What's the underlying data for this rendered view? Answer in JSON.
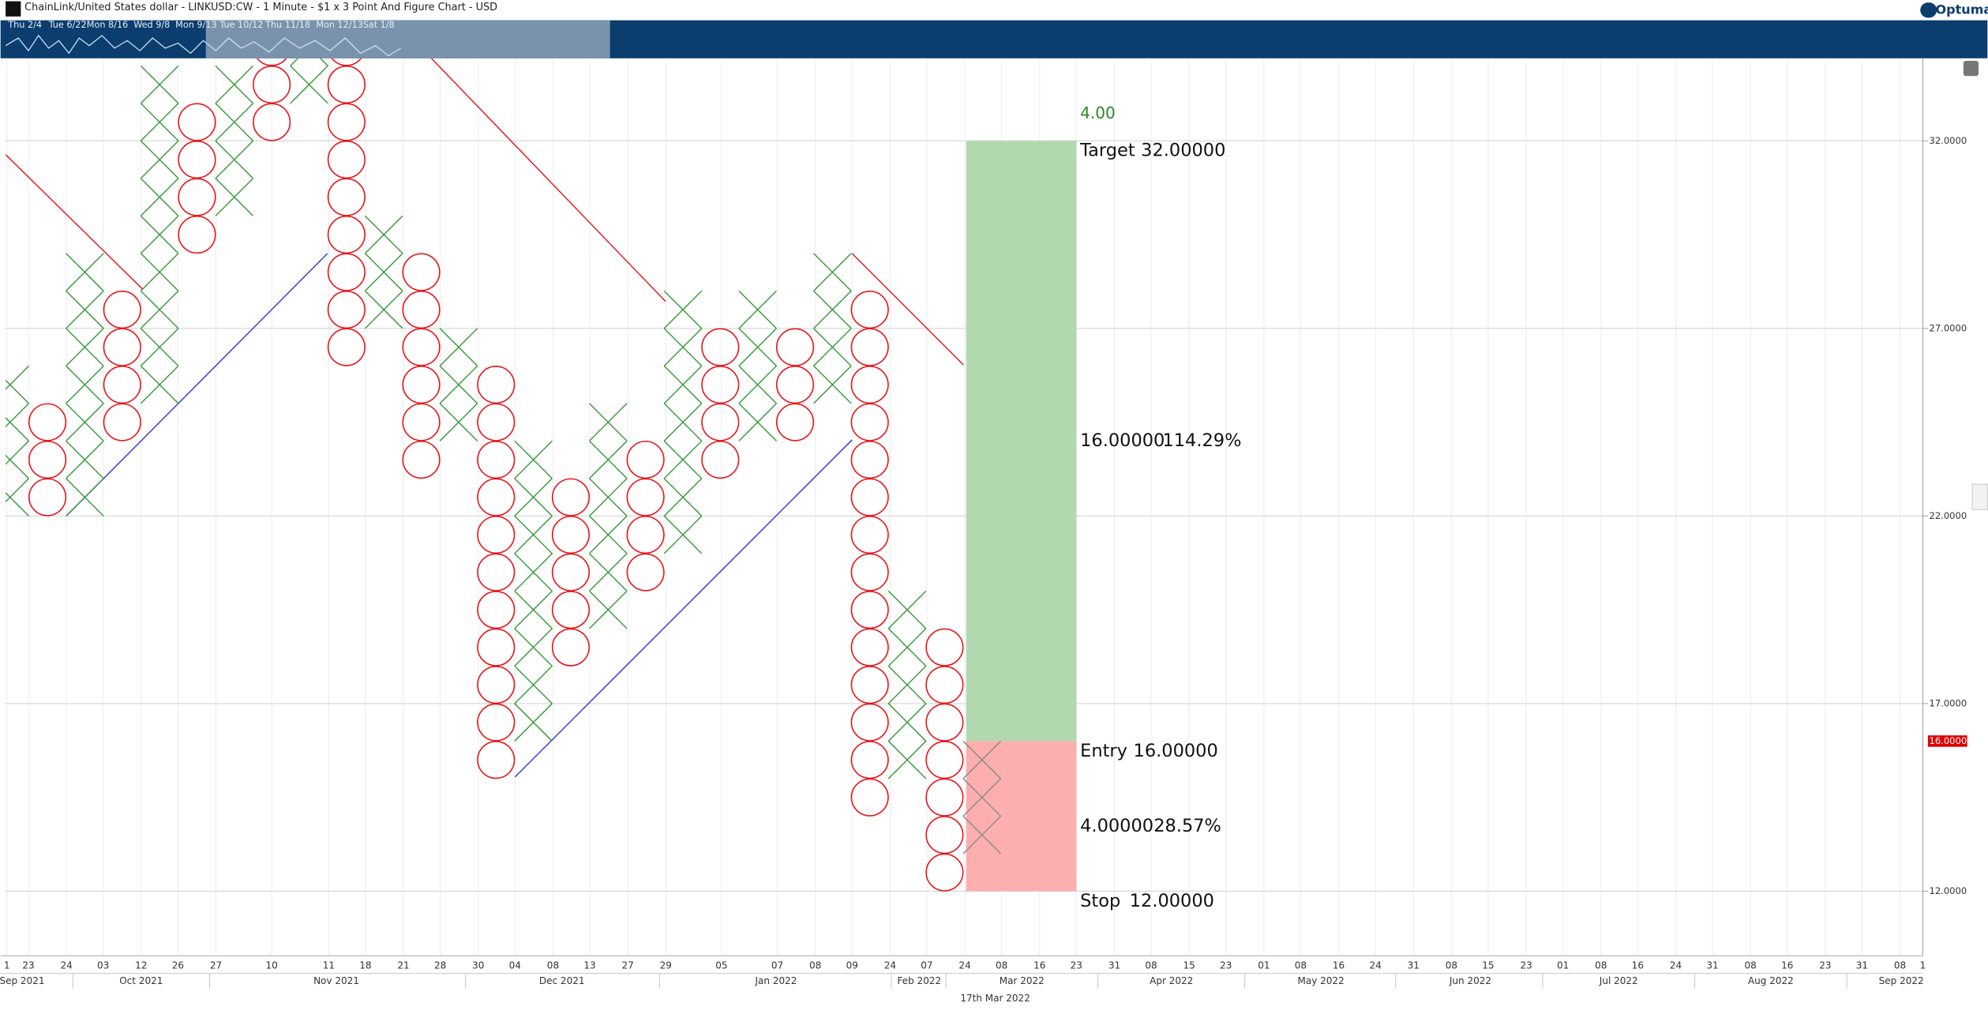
{
  "header": {
    "title": "ChainLink/United States dollar - LINKUSD:CW - 1 Minute - $1 x 3 Point And Figure Chart - USD",
    "logo": "Optuma"
  },
  "navigator": {
    "labels": [
      "Thu 2/4",
      "Tue 6/22",
      "Mon 8/16",
      "Wed 9/8",
      "Mon 9/13",
      "Tue 10/12",
      "Thu 11/18",
      "Mon 12/13",
      "Sat 1/8"
    ]
  },
  "chart_data": {
    "type": "point-and-figure",
    "box_size": 1,
    "ylim": [
      10.28,
      34.2
    ],
    "yticks": [
      {
        "value": 12,
        "label": "12.0000"
      },
      {
        "value": 17,
        "label": "17.0000"
      },
      {
        "value": 22,
        "label": "22.0000"
      },
      {
        "value": 27,
        "label": "27.0000"
      },
      {
        "value": 32,
        "label": "32.0000"
      }
    ],
    "grid": true,
    "colors": {
      "X": "#3a9a3a",
      "O": "#e8161b",
      "projected": "#8c8c8c"
    },
    "last_price": {
      "value": 16,
      "label": "16.0000"
    },
    "columns": [
      {
        "kind": "X",
        "low": 22,
        "high": 25
      },
      {
        "kind": "O",
        "low": 22,
        "high": 24
      },
      {
        "kind": "X",
        "low": 22,
        "high": 28
      },
      {
        "kind": "O",
        "low": 24,
        "high": 27
      },
      {
        "kind": "X",
        "low": 25,
        "high": 33
      },
      {
        "kind": "O",
        "low": 29,
        "high": 32
      },
      {
        "kind": "X",
        "low": 30,
        "high": 33
      },
      {
        "kind": "O",
        "low": 32,
        "high": 34
      },
      {
        "kind": "X",
        "low": 33,
        "high": 34
      },
      {
        "kind": "O",
        "low": 26,
        "high": 34
      },
      {
        "kind": "X",
        "low": 27,
        "high": 29
      },
      {
        "kind": "O",
        "low": 23,
        "high": 28
      },
      {
        "kind": "X",
        "low": 24,
        "high": 26
      },
      {
        "kind": "O",
        "low": 15,
        "high": 25
      },
      {
        "kind": "X",
        "low": 16,
        "high": 23
      },
      {
        "kind": "O",
        "low": 18,
        "high": 22
      },
      {
        "kind": "X",
        "low": 19,
        "high": 24
      },
      {
        "kind": "O",
        "low": 20,
        "high": 23
      },
      {
        "kind": "X",
        "low": 21,
        "high": 27
      },
      {
        "kind": "O",
        "low": 23,
        "high": 26
      },
      {
        "kind": "X",
        "low": 24,
        "high": 27
      },
      {
        "kind": "O",
        "low": 24,
        "high": 26
      },
      {
        "kind": "X",
        "low": 25,
        "high": 28
      },
      {
        "kind": "O",
        "low": 14,
        "high": 27
      },
      {
        "kind": "X",
        "low": 15,
        "high": 19
      },
      {
        "kind": "O",
        "low": 12,
        "high": 18
      },
      {
        "kind": "X",
        "low": 13,
        "high": 15,
        "projected": true
      }
    ],
    "x_tick_labels": [
      "1",
      "23",
      "24",
      "03",
      "12",
      "26",
      "27",
      "10",
      "11",
      "18",
      "21",
      "28",
      "30",
      "04",
      "08",
      "13",
      "27",
      "29",
      "05",
      "07",
      "08",
      "09",
      "24",
      "07",
      "24",
      "08",
      "16",
      "23",
      "31",
      "08",
      "15",
      "23",
      "01",
      "08",
      "16",
      "24",
      "31",
      "08",
      "15",
      "23",
      "01",
      "08",
      "16",
      "24",
      "31",
      "08",
      "16",
      "23",
      "31",
      "08",
      "1"
    ],
    "x_period_labels": [
      "Sep 2021",
      "Oct 2021",
      "Nov 2021",
      "Dec 2021",
      "Jan 2022",
      "Feb 2022",
      "Mar 2022",
      "Apr 2022",
      "May 2022",
      "Jun 2022",
      "Jul 2022",
      "Aug 2022",
      "Sep 2022"
    ],
    "cursor_date": "17th Mar 2022",
    "risk_reward": {
      "ratio": {
        "value": 4,
        "label": "4.00"
      },
      "target": {
        "text": "Target",
        "value": 32,
        "label": "32.00000"
      },
      "entry": {
        "text": "Entry",
        "value": 16,
        "label": "16.00000"
      },
      "stop": {
        "text": "Stop",
        "value": 12,
        "label": "12.00000"
      },
      "reward": {
        "value": 16,
        "label": "16.00000",
        "percent": {
          "value": 114.29,
          "label": "114.29%"
        }
      },
      "risk": {
        "value": 4,
        "label": "4.00000",
        "percent": {
          "value": 28.57,
          "label": "28.57%"
        }
      }
    }
  }
}
